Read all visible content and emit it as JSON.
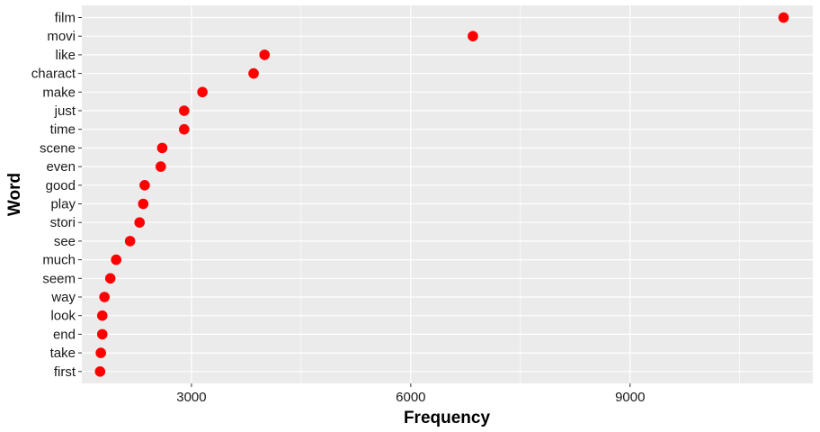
{
  "chart_data": {
    "type": "scatter",
    "title": "",
    "xlabel": "Frequency",
    "ylabel": "Word",
    "xlim": [
      1500,
      11500
    ],
    "xticks": [
      3000,
      6000,
      9000
    ],
    "xtick_labels": [
      "3000",
      "6000",
      "9000"
    ],
    "grid": true,
    "legend": "none",
    "categories": [
      "film",
      "movi",
      "like",
      "charact",
      "make",
      "just",
      "time",
      "scene",
      "even",
      "good",
      "play",
      "stori",
      "see",
      "much",
      "seem",
      "way",
      "look",
      "end",
      "take",
      "first"
    ],
    "values": [
      11100,
      6850,
      4000,
      3850,
      3150,
      2900,
      2900,
      2600,
      2580,
      2360,
      2340,
      2290,
      2160,
      1970,
      1890,
      1810,
      1780,
      1780,
      1760,
      1750
    ],
    "colors": {
      "point": "#ff0000",
      "panel": "#ebebeb",
      "grid": "#ffffff"
    }
  }
}
